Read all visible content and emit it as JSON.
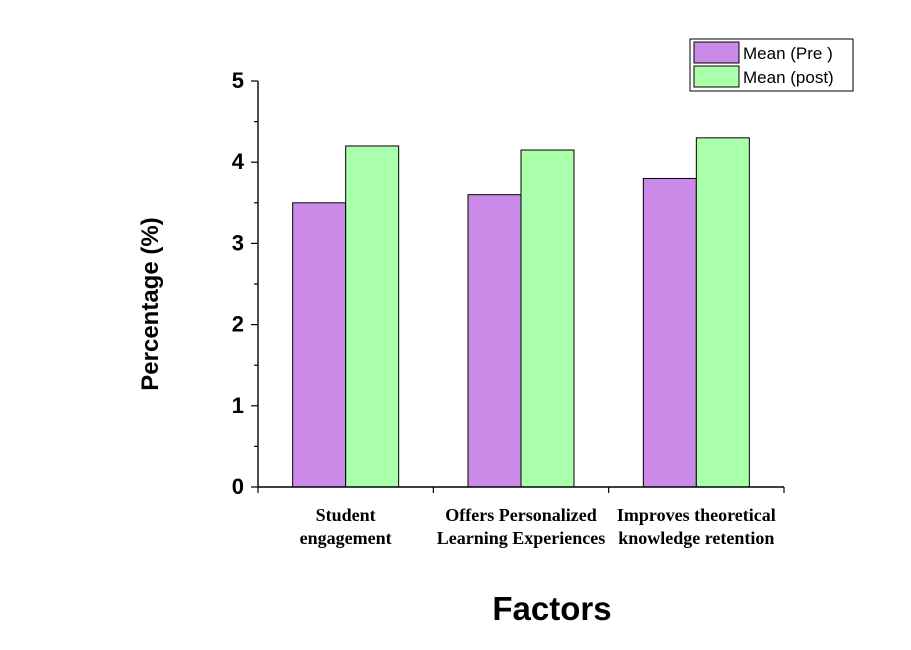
{
  "chart_data": {
    "type": "bar",
    "categories": [
      [
        "Student",
        "engagement"
      ],
      [
        "Offers Personalized",
        "Learning Experiences"
      ],
      [
        "Improves theoretical",
        "knowledge retention"
      ]
    ],
    "series": [
      {
        "name": "Mean (Pre )",
        "values": [
          3.5,
          3.6,
          3.8
        ],
        "color": "#cc8ae8"
      },
      {
        "name": "Mean (post)",
        "values": [
          4.2,
          4.15,
          4.3
        ],
        "color": "#aaffaa"
      }
    ],
    "title": "",
    "xlabel": "Factors",
    "ylabel": "Percentage (%)",
    "ylim": [
      0,
      5
    ],
    "yticks": [
      "0",
      "1",
      "2",
      "3",
      "4",
      "5"
    ],
    "grid": false,
    "legend": "top-right"
  }
}
